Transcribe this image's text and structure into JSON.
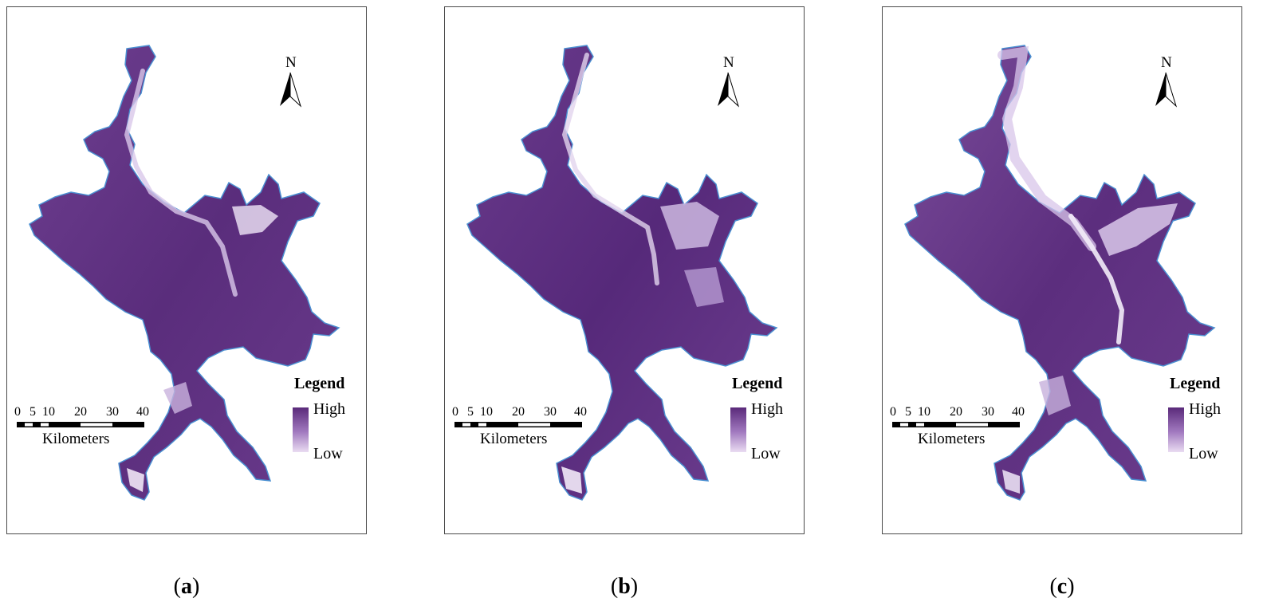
{
  "panels": [
    {
      "id": "a",
      "caption_letter": "a",
      "ramp_high": "#5a2a7a",
      "ramp_low": "#eadcf2"
    },
    {
      "id": "b",
      "caption_letter": "b",
      "ramp_high": "#5a2a7a",
      "ramp_low": "#eadcf2"
    },
    {
      "id": "c",
      "caption_letter": "c",
      "ramp_high": "#5a2a7a",
      "ramp_low": "#eadcf2"
    }
  ],
  "north_arrow": {
    "label": "N"
  },
  "legend": {
    "title": "Legend",
    "high_label": "High",
    "low_label": "Low"
  },
  "scale_bar": {
    "ticks": [
      "0",
      "5",
      "10",
      "20",
      "30",
      "40"
    ],
    "unit": "Kilometers"
  },
  "colors": {
    "water_fill": "#6b3a8c",
    "shoreline": "#4a8fd1",
    "frame": "#4a4a4a"
  }
}
